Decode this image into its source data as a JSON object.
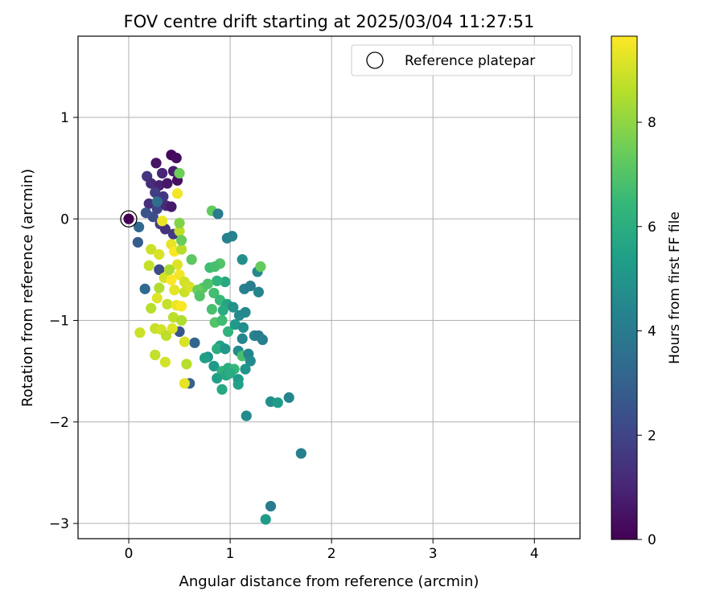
{
  "chart_data": {
    "type": "scatter",
    "title": "FOV centre drift starting at 2025/03/04 11:27:51",
    "xlabel": "Angular distance from reference (arcmin)",
    "ylabel": "Rotation from reference (arcmin)",
    "xlim": [
      -0.5,
      4.45
    ],
    "ylim": [
      -3.15,
      1.8
    ],
    "xticks": [
      0,
      1,
      2,
      3,
      4
    ],
    "yticks": [
      1,
      0,
      -1,
      -2,
      -3
    ],
    "xtick_labels": [
      "0",
      "1",
      "2",
      "3",
      "4"
    ],
    "ytick_labels": [
      "1",
      "0",
      "−1",
      "−2",
      "−3"
    ],
    "grid": true,
    "legend": {
      "placement": "top-right",
      "entries": [
        "Reference platepar"
      ]
    },
    "colorbar": {
      "label": "Hours from first FF file",
      "range": [
        0,
        9.65
      ],
      "ticks": [
        0,
        2,
        4,
        6,
        8
      ],
      "tick_labels": [
        "0",
        "2",
        "4",
        "6",
        "8"
      ],
      "colormap": "viridis",
      "stops": [
        "#440154",
        "#482878",
        "#3e4989",
        "#31688e",
        "#26828e",
        "#1f9e89",
        "#35b779",
        "#6ece58",
        "#b5de2b",
        "#fde725"
      ]
    },
    "reference": {
      "x": 0.0,
      "y": 0.0,
      "value": 0.0
    },
    "points": [
      {
        "x": 0.42,
        "y": 0.63,
        "c": 0.2
      },
      {
        "x": 0.47,
        "y": 0.6,
        "c": 0.3
      },
      {
        "x": 0.27,
        "y": 0.55,
        "c": 0.5
      },
      {
        "x": 0.33,
        "y": 0.45,
        "c": 1.0
      },
      {
        "x": 0.18,
        "y": 0.42,
        "c": 1.5
      },
      {
        "x": 0.44,
        "y": 0.47,
        "c": 0.8
      },
      {
        "x": 0.22,
        "y": 0.35,
        "c": 1.2
      },
      {
        "x": 0.3,
        "y": 0.33,
        "c": 0.9
      },
      {
        "x": 0.38,
        "y": 0.35,
        "c": 0.6
      },
      {
        "x": 0.48,
        "y": 0.38,
        "c": 0.4
      },
      {
        "x": 0.26,
        "y": 0.26,
        "c": 1.8
      },
      {
        "x": 0.34,
        "y": 0.22,
        "c": 1.6
      },
      {
        "x": 0.2,
        "y": 0.15,
        "c": 1.3
      },
      {
        "x": 0.28,
        "y": 0.1,
        "c": 2.0
      },
      {
        "x": 0.37,
        "y": 0.13,
        "c": 1.1
      },
      {
        "x": 0.42,
        "y": 0.12,
        "c": 0.7
      },
      {
        "x": 0.24,
        "y": 0.02,
        "c": 2.3
      },
      {
        "x": 0.31,
        "y": -0.05,
        "c": 1.9
      },
      {
        "x": 0.36,
        "y": -0.1,
        "c": 1.4
      },
      {
        "x": 0.44,
        "y": -0.15,
        "c": 1.7
      },
      {
        "x": 0.17,
        "y": 0.06,
        "c": 2.5
      },
      {
        "x": 0.28,
        "y": 0.17,
        "c": 3.5
      },
      {
        "x": 0.1,
        "y": -0.08,
        "c": 3.2
      },
      {
        "x": 0.09,
        "y": -0.23,
        "c": 2.8
      },
      {
        "x": 0.3,
        "y": -0.5,
        "c": 2.2
      },
      {
        "x": 0.16,
        "y": -0.69,
        "c": 3.3
      },
      {
        "x": 0.5,
        "y": -1.11,
        "c": 2.6
      },
      {
        "x": 0.65,
        "y": -1.22,
        "c": 3.1
      },
      {
        "x": 0.6,
        "y": -1.62,
        "c": 3.0
      },
      {
        "x": 0.5,
        "y": 0.45,
        "c": 7.5
      },
      {
        "x": 0.48,
        "y": 0.25,
        "c": 9.5
      },
      {
        "x": 0.33,
        "y": -0.02,
        "c": 9.4
      },
      {
        "x": 0.22,
        "y": -0.3,
        "c": 8.9
      },
      {
        "x": 0.3,
        "y": -0.35,
        "c": 9.1
      },
      {
        "x": 0.42,
        "y": -0.25,
        "c": 9.3
      },
      {
        "x": 0.5,
        "y": -0.12,
        "c": 8.7
      },
      {
        "x": 0.45,
        "y": -0.32,
        "c": 9.6
      },
      {
        "x": 0.48,
        "y": -0.45,
        "c": 9.2
      },
      {
        "x": 0.52,
        "y": -0.3,
        "c": 8.6
      },
      {
        "x": 0.2,
        "y": -0.46,
        "c": 8.8
      },
      {
        "x": 0.35,
        "y": -0.58,
        "c": 9.0
      },
      {
        "x": 0.4,
        "y": -0.5,
        "c": 8.4
      },
      {
        "x": 0.5,
        "y": -0.55,
        "c": 9.5
      },
      {
        "x": 0.55,
        "y": -0.62,
        "c": 9.0
      },
      {
        "x": 0.3,
        "y": -0.68,
        "c": 8.5
      },
      {
        "x": 0.45,
        "y": -0.7,
        "c": 9.3
      },
      {
        "x": 0.55,
        "y": -0.72,
        "c": 8.9
      },
      {
        "x": 0.6,
        "y": -0.67,
        "c": 9.1
      },
      {
        "x": 0.38,
        "y": -0.84,
        "c": 8.8
      },
      {
        "x": 0.47,
        "y": -0.85,
        "c": 9.4
      },
      {
        "x": 0.22,
        "y": -0.88,
        "c": 8.6
      },
      {
        "x": 0.52,
        "y": -0.86,
        "c": 9.6
      },
      {
        "x": 0.44,
        "y": -0.97,
        "c": 8.7
      },
      {
        "x": 0.52,
        "y": -1.0,
        "c": 8.5
      },
      {
        "x": 0.26,
        "y": -1.08,
        "c": 8.8
      },
      {
        "x": 0.32,
        "y": -1.09,
        "c": 9.0
      },
      {
        "x": 0.43,
        "y": -1.08,
        "c": 9.2
      },
      {
        "x": 0.11,
        "y": -1.12,
        "c": 8.9
      },
      {
        "x": 0.37,
        "y": -1.15,
        "c": 8.7
      },
      {
        "x": 0.55,
        "y": -1.21,
        "c": 9.1
      },
      {
        "x": 0.26,
        "y": -1.34,
        "c": 8.8
      },
      {
        "x": 0.36,
        "y": -1.41,
        "c": 9.0
      },
      {
        "x": 0.57,
        "y": -1.43,
        "c": 8.6
      },
      {
        "x": 0.55,
        "y": -1.62,
        "c": 9.3
      },
      {
        "x": 0.28,
        "y": -0.78,
        "c": 9.2
      },
      {
        "x": 0.42,
        "y": -0.6,
        "c": 9.6
      },
      {
        "x": 0.5,
        "y": -0.04,
        "c": 7.8
      },
      {
        "x": 0.52,
        "y": -0.21,
        "c": 7.4
      },
      {
        "x": 0.62,
        "y": -0.4,
        "c": 7.2
      },
      {
        "x": 0.82,
        "y": 0.08,
        "c": 7.3
      },
      {
        "x": 0.88,
        "y": 0.05,
        "c": 4.0
      },
      {
        "x": 0.97,
        "y": -0.19,
        "c": 4.2
      },
      {
        "x": 1.02,
        "y": -0.17,
        "c": 4.3
      },
      {
        "x": 0.8,
        "y": -0.48,
        "c": 6.6
      },
      {
        "x": 0.9,
        "y": -0.44,
        "c": 7.0
      },
      {
        "x": 0.85,
        "y": -0.47,
        "c": 6.8
      },
      {
        "x": 1.12,
        "y": -0.4,
        "c": 4.8
      },
      {
        "x": 1.27,
        "y": -0.52,
        "c": 4.5
      },
      {
        "x": 1.3,
        "y": -0.47,
        "c": 7.3
      },
      {
        "x": 0.95,
        "y": -0.62,
        "c": 5.8
      },
      {
        "x": 0.87,
        "y": -0.61,
        "c": 6.2
      },
      {
        "x": 0.73,
        "y": -0.68,
        "c": 7.1
      },
      {
        "x": 0.78,
        "y": -0.64,
        "c": 6.9
      },
      {
        "x": 0.68,
        "y": -0.7,
        "c": 7.4
      },
      {
        "x": 0.7,
        "y": -0.76,
        "c": 7.0
      },
      {
        "x": 0.84,
        "y": -0.73,
        "c": 6.7
      },
      {
        "x": 0.9,
        "y": -0.8,
        "c": 6.5
      },
      {
        "x": 1.14,
        "y": -0.69,
        "c": 4.2
      },
      {
        "x": 1.2,
        "y": -0.66,
        "c": 4.1
      },
      {
        "x": 1.28,
        "y": -0.72,
        "c": 4.4
      },
      {
        "x": 0.97,
        "y": -0.84,
        "c": 5.6
      },
      {
        "x": 0.82,
        "y": -0.89,
        "c": 6.8
      },
      {
        "x": 0.93,
        "y": -0.9,
        "c": 5.9
      },
      {
        "x": 1.03,
        "y": -0.87,
        "c": 4.9
      },
      {
        "x": 1.09,
        "y": -0.95,
        "c": 4.6
      },
      {
        "x": 1.15,
        "y": -0.92,
        "c": 4.5
      },
      {
        "x": 0.85,
        "y": -1.02,
        "c": 7.0
      },
      {
        "x": 0.92,
        "y": -1.0,
        "c": 6.6
      },
      {
        "x": 0.98,
        "y": -1.11,
        "c": 6.2
      },
      {
        "x": 1.05,
        "y": -1.04,
        "c": 5.2
      },
      {
        "x": 1.13,
        "y": -1.07,
        "c": 4.8
      },
      {
        "x": 1.12,
        "y": -1.18,
        "c": 4.4
      },
      {
        "x": 1.24,
        "y": -1.15,
        "c": 4.3
      },
      {
        "x": 1.28,
        "y": -1.15,
        "c": 4.0
      },
      {
        "x": 1.32,
        "y": -1.19,
        "c": 4.2
      },
      {
        "x": 0.9,
        "y": -1.25,
        "c": 5.5
      },
      {
        "x": 0.87,
        "y": -1.28,
        "c": 6.0
      },
      {
        "x": 0.78,
        "y": -1.36,
        "c": 5.0
      },
      {
        "x": 0.75,
        "y": -1.37,
        "c": 5.4
      },
      {
        "x": 0.95,
        "y": -1.28,
        "c": 5.1
      },
      {
        "x": 1.08,
        "y": -1.3,
        "c": 4.7
      },
      {
        "x": 1.12,
        "y": -1.35,
        "c": 6.8
      },
      {
        "x": 1.18,
        "y": -1.33,
        "c": 4.4
      },
      {
        "x": 1.2,
        "y": -1.4,
        "c": 4.6
      },
      {
        "x": 0.84,
        "y": -1.45,
        "c": 5.2
      },
      {
        "x": 0.92,
        "y": -1.5,
        "c": 6.2
      },
      {
        "x": 0.98,
        "y": -1.47,
        "c": 6.0
      },
      {
        "x": 1.04,
        "y": -1.48,
        "c": 6.4
      },
      {
        "x": 1.15,
        "y": -1.48,
        "c": 5.0
      },
      {
        "x": 0.87,
        "y": -1.57,
        "c": 5.4
      },
      {
        "x": 0.96,
        "y": -1.54,
        "c": 5.7
      },
      {
        "x": 1.0,
        "y": -1.52,
        "c": 5.9
      },
      {
        "x": 1.08,
        "y": -1.58,
        "c": 5.3
      },
      {
        "x": 0.92,
        "y": -1.68,
        "c": 5.8
      },
      {
        "x": 1.08,
        "y": -1.63,
        "c": 5.5
      },
      {
        "x": 1.16,
        "y": -1.94,
        "c": 4.6
      },
      {
        "x": 1.4,
        "y": -1.8,
        "c": 4.8
      },
      {
        "x": 1.47,
        "y": -1.81,
        "c": 5.3
      },
      {
        "x": 1.58,
        "y": -1.76,
        "c": 4.4
      },
      {
        "x": 1.7,
        "y": -2.31,
        "c": 4.2
      },
      {
        "x": 1.4,
        "y": -2.83,
        "c": 4.0
      },
      {
        "x": 1.35,
        "y": -2.96,
        "c": 5.3
      }
    ]
  }
}
